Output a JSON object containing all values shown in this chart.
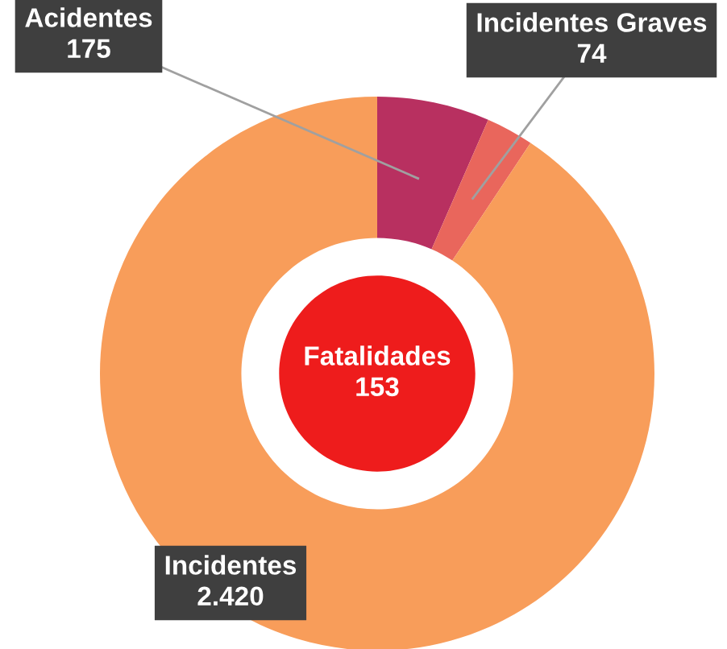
{
  "chart_data": {
    "type": "donut",
    "categories": [
      "Acidentes",
      "Incidentes Graves",
      "Incidentes"
    ],
    "values": [
      175,
      74,
      2420
    ],
    "value_labels": [
      "175",
      "74",
      "2.420"
    ],
    "colors": [
      "#b83060",
      "#e9665c",
      "#f89d5a"
    ],
    "annotations": [
      "Fatalidades\n153"
    ],
    "legend": false
  }
}
